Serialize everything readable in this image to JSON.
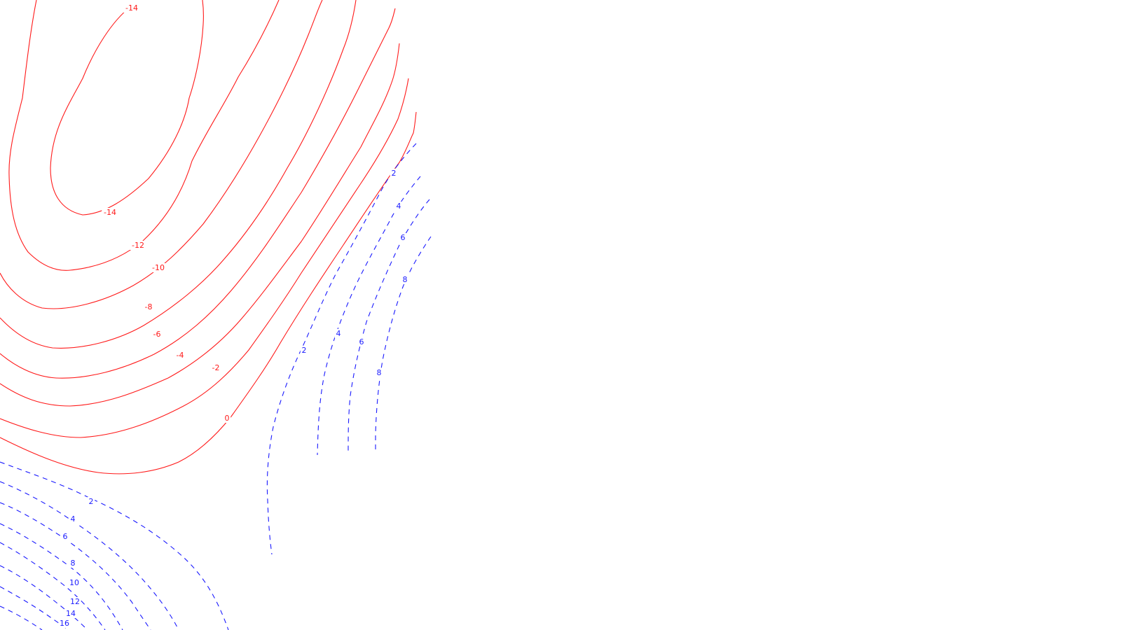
{
  "chart_data": {
    "type": "contour",
    "negative_style": "solid red",
    "positive_style": "dashed blue",
    "colors": {
      "negative": "#ff1a1a",
      "positive": "#1a1aff"
    },
    "contour_labels": [
      {
        "value": -14,
        "text": "-14"
      },
      {
        "value": -14,
        "text": "-14"
      },
      {
        "value": -12,
        "text": "-12"
      },
      {
        "value": -10,
        "text": "-10"
      },
      {
        "value": -8,
        "text": "-8"
      },
      {
        "value": -6,
        "text": "-6"
      },
      {
        "value": -4,
        "text": "-4"
      },
      {
        "value": -2,
        "text": "-2"
      },
      {
        "value": 0,
        "text": "0"
      },
      {
        "value": 2,
        "text": "2"
      },
      {
        "value": 4,
        "text": "4"
      },
      {
        "value": 6,
        "text": "6"
      },
      {
        "value": 8,
        "text": "8"
      },
      {
        "value": 2,
        "text": "2"
      },
      {
        "value": 4,
        "text": "4"
      },
      {
        "value": 6,
        "text": "6"
      },
      {
        "value": 8,
        "text": "8"
      },
      {
        "value": 2,
        "text": "2"
      },
      {
        "value": 4,
        "text": "4"
      },
      {
        "value": 6,
        "text": "6"
      },
      {
        "value": 8,
        "text": "8"
      },
      {
        "value": 10,
        "text": "10"
      },
      {
        "value": 12,
        "text": "12"
      },
      {
        "value": 14,
        "text": "14"
      },
      {
        "value": 16,
        "text": "16"
      }
    ],
    "title": "",
    "xlabel": "",
    "ylabel": "",
    "grid": false,
    "axes_visible": false
  }
}
